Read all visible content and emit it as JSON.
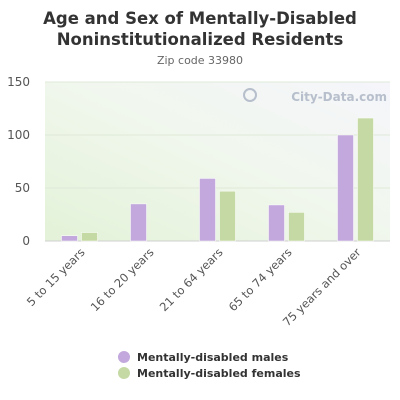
{
  "title_line1": "Age and Sex of Mentally-Disabled",
  "title_line2": "Noninstitutionalized Residents",
  "subtitle": "Zip code 33980",
  "watermark": "City-Data.com",
  "colors": {
    "males": "#c2a8dc",
    "females": "#c5d9a4"
  },
  "chart_data": {
    "type": "bar",
    "title": "Age and Sex of Mentally-Disabled Noninstitutionalized Residents",
    "subtitle": "Zip code 33980",
    "categories": [
      "5 to 15 years",
      "16 to 20 years",
      "21 to 64 years",
      "65 to 74 years",
      "75 years and over"
    ],
    "series": [
      {
        "name": "Mentally-disabled males",
        "values": [
          5,
          35,
          59,
          34,
          100
        ]
      },
      {
        "name": "Mentally-disabled females",
        "values": [
          8,
          0,
          47,
          27,
          116
        ]
      }
    ],
    "yticks": [
      0,
      50,
      100,
      150
    ],
    "ylim": [
      0,
      150
    ],
    "grid": true,
    "legend_position": "bottom"
  }
}
